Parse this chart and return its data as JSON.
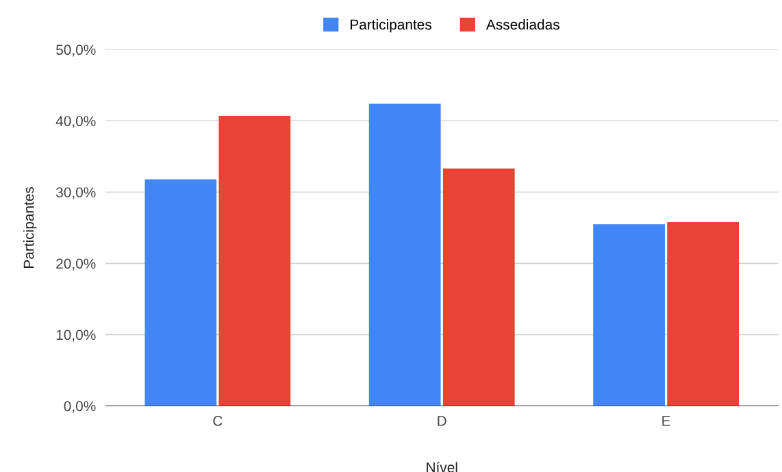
{
  "chart_data": {
    "type": "bar",
    "xlabel": "Nível",
    "ylabel": "Participantes",
    "categories": [
      "C",
      "D",
      "E"
    ],
    "series": [
      {
        "name": "Participantes",
        "color": "#4285f4",
        "values": [
          31.8,
          42.4,
          25.5
        ]
      },
      {
        "name": "Assediadas",
        "color": "#ea4335",
        "values": [
          40.7,
          33.3,
          25.8
        ]
      }
    ],
    "ylim": [
      0,
      50
    ],
    "yticks": [
      {
        "value": 0,
        "label": "0,0%"
      },
      {
        "value": 10,
        "label": "10,0%"
      },
      {
        "value": 20,
        "label": "20,0%"
      },
      {
        "value": 30,
        "label": "30,0%"
      },
      {
        "value": 40,
        "label": "40,0%"
      },
      {
        "value": 50,
        "label": "50,0%"
      }
    ],
    "grid": "y",
    "legend": "top"
  }
}
